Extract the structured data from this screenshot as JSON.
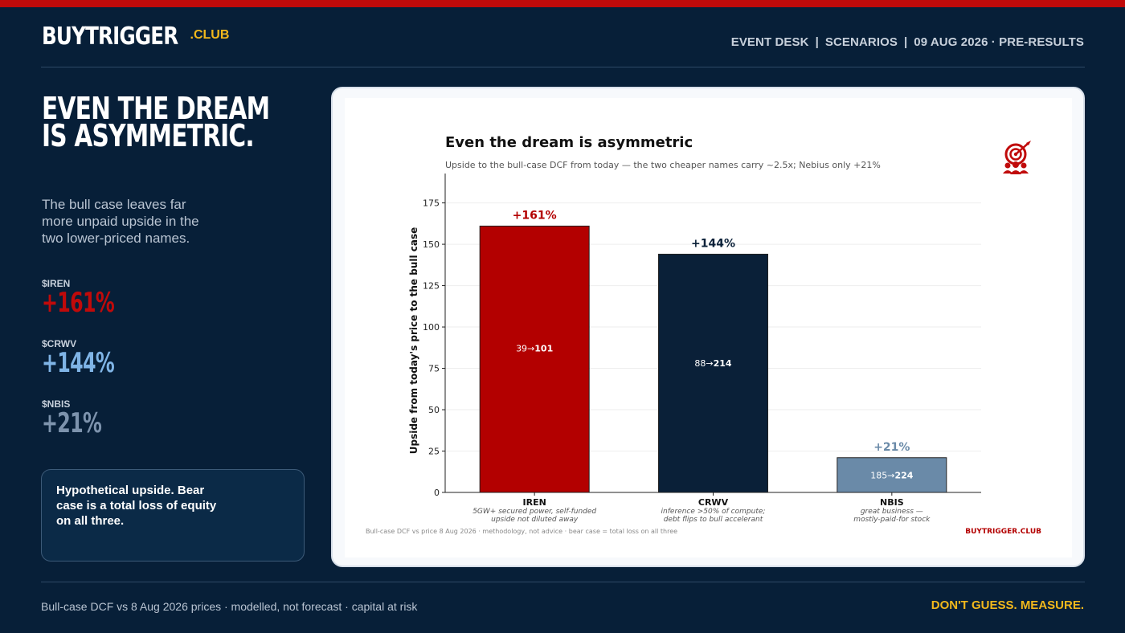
{
  "brand": {
    "name": "BUYTRIGGER",
    "suffix": ".CLUB"
  },
  "header": {
    "nav": [
      "EVENT DESK",
      "SCENARIOS",
      "09 AUG 2026 · PRE-RESULTS"
    ],
    "separator": "|"
  },
  "headline": {
    "line1": "EVEN THE DREAM",
    "line2": "IS ASYMMETRIC."
  },
  "lede": "The bull case leaves far more unpaid upside in the two lower-priced names.",
  "stats": [
    {
      "ticker": "$IREN",
      "value": "+161%",
      "color": "#c00a0a"
    },
    {
      "ticker": "$CRWV",
      "value": "+144%",
      "color": "#7fb4e6"
    },
    {
      "ticker": "$NBIS",
      "value": "+21%",
      "color": "#7d93ad"
    }
  ],
  "disclaimer": "Hypothetical upside. Bear case is a total loss of equity on all three.",
  "chart_data": {
    "type": "bar",
    "title": "Even the dream is asymmetric",
    "subtitle": "Upside to the bull-case DCF from today — the two cheaper names carry ~2.5x; Nebius only +21%",
    "ylabel": "Upside from today's price to the bull case",
    "xlabel": "",
    "ylim": [
      0,
      185
    ],
    "yticks": [
      0,
      25,
      50,
      75,
      100,
      125,
      150,
      175
    ],
    "grid": true,
    "categories": [
      "IREN",
      "CRWV",
      "NBIS"
    ],
    "values": [
      161,
      144,
      21
    ],
    "value_labels": [
      "+161%",
      "+144%",
      "+21%"
    ],
    "bar_colors": [
      "#b30000",
      "#0a2038",
      "#6a8aa8"
    ],
    "label_colors": [
      "#b30000",
      "#0a2038",
      "#6a8aa8"
    ],
    "price_from": [
      "39",
      "88",
      "185"
    ],
    "price_to": [
      "101",
      "214",
      "224"
    ],
    "arrow": "→",
    "notes": [
      [
        "5GW+ secured power, self-funded",
        "upside not diluted away"
      ],
      [
        "inference >50% of compute;",
        "debt flips to bull accelerant"
      ],
      [
        "great business —",
        "mostly-paid-for stock"
      ]
    ],
    "footnote": "Bull-case DCF vs price 8 Aug 2026 · methodology, not advice · bear case = total loss on all three",
    "watermark": "BUYTRIGGER.CLUB",
    "icon": "target-audience-icon"
  },
  "footer": {
    "left": "Bull-case DCF vs 8 Aug 2026 prices · modelled, not forecast · capital at risk",
    "right": "DON'T GUESS. MEASURE."
  }
}
